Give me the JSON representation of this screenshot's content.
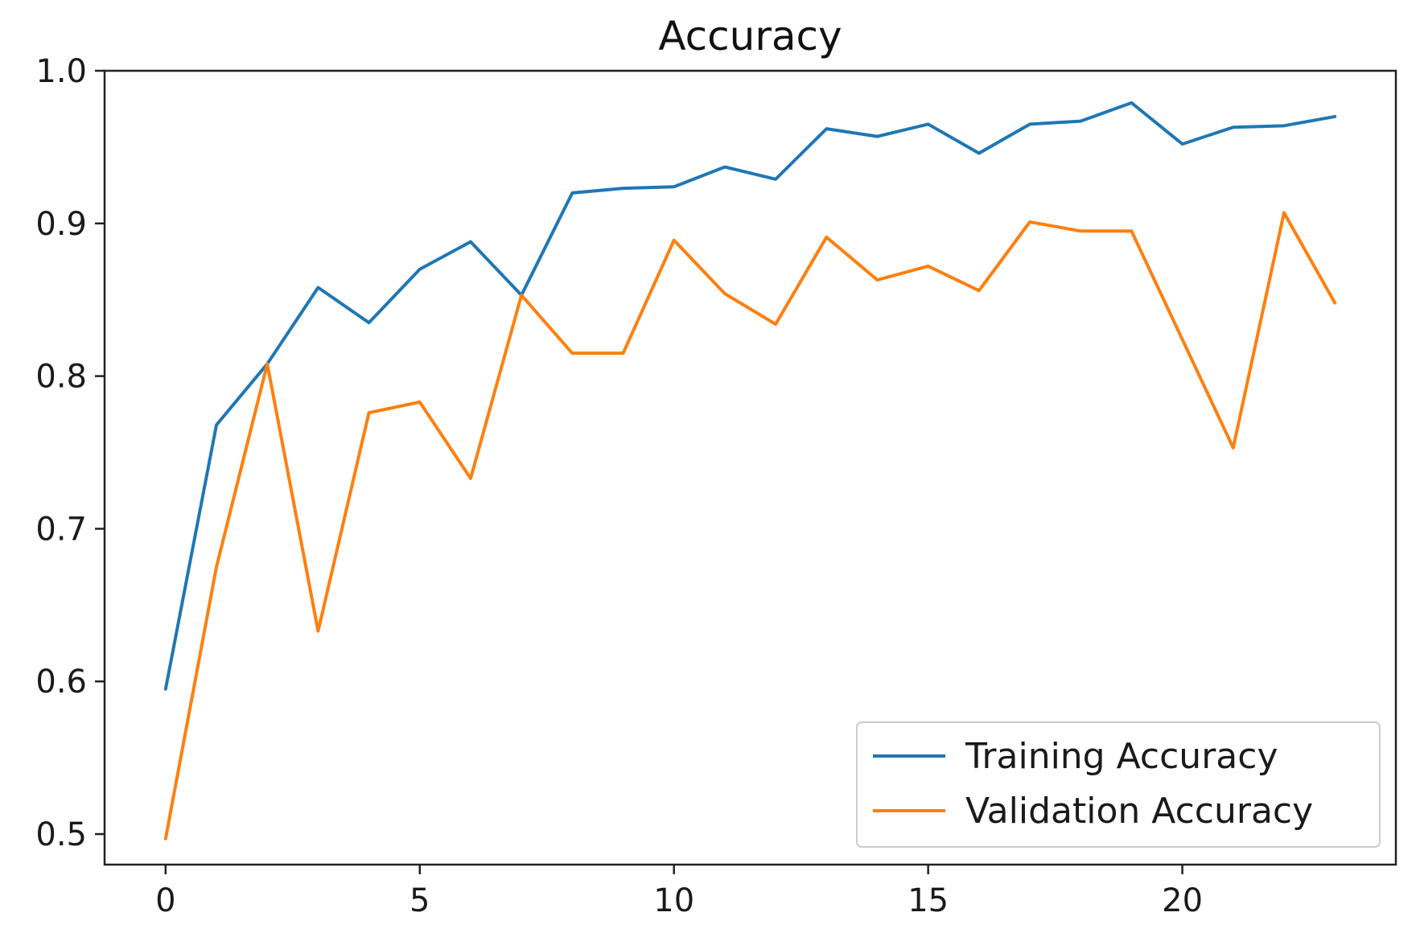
{
  "chart_data": {
    "type": "line",
    "title": "Accuracy",
    "xlabel": "",
    "ylabel": "",
    "x": [
      0,
      1,
      2,
      3,
      4,
      5,
      6,
      7,
      8,
      9,
      10,
      11,
      12,
      13,
      14,
      15,
      16,
      17,
      18,
      19,
      20,
      21,
      22,
      23
    ],
    "series": [
      {
        "name": "Training Accuracy",
        "color": "#1f77b4",
        "values": [
          0.595,
          0.768,
          0.808,
          0.858,
          0.835,
          0.87,
          0.888,
          0.853,
          0.92,
          0.923,
          0.924,
          0.937,
          0.929,
          0.962,
          0.957,
          0.965,
          0.946,
          0.965,
          0.967,
          0.979,
          0.952,
          0.963,
          0.964,
          0.97
        ]
      },
      {
        "name": "Validation Accuracy",
        "color": "#ff7f0e",
        "values": [
          0.497,
          0.675,
          0.808,
          0.633,
          0.776,
          0.783,
          0.733,
          0.853,
          0.815,
          0.815,
          0.889,
          0.854,
          0.834,
          0.891,
          0.863,
          0.872,
          0.856,
          0.901,
          0.895,
          0.895,
          0.824,
          0.753,
          0.907,
          0.848
        ]
      }
    ],
    "xlim": [
      -1.2,
      24.2
    ],
    "ylim": [
      0.48,
      1.0
    ],
    "xticks": [
      0,
      5,
      10,
      15,
      20
    ],
    "xtick_labels": [
      "0",
      "5",
      "10",
      "15",
      "20"
    ],
    "yticks": [
      0.5,
      0.6,
      0.7,
      0.8,
      0.9,
      1.0
    ],
    "ytick_labels": [
      "0.5",
      "0.6",
      "0.7",
      "0.8",
      "0.9",
      "1.0"
    ],
    "grid": false,
    "legend_position": "lower-right"
  }
}
